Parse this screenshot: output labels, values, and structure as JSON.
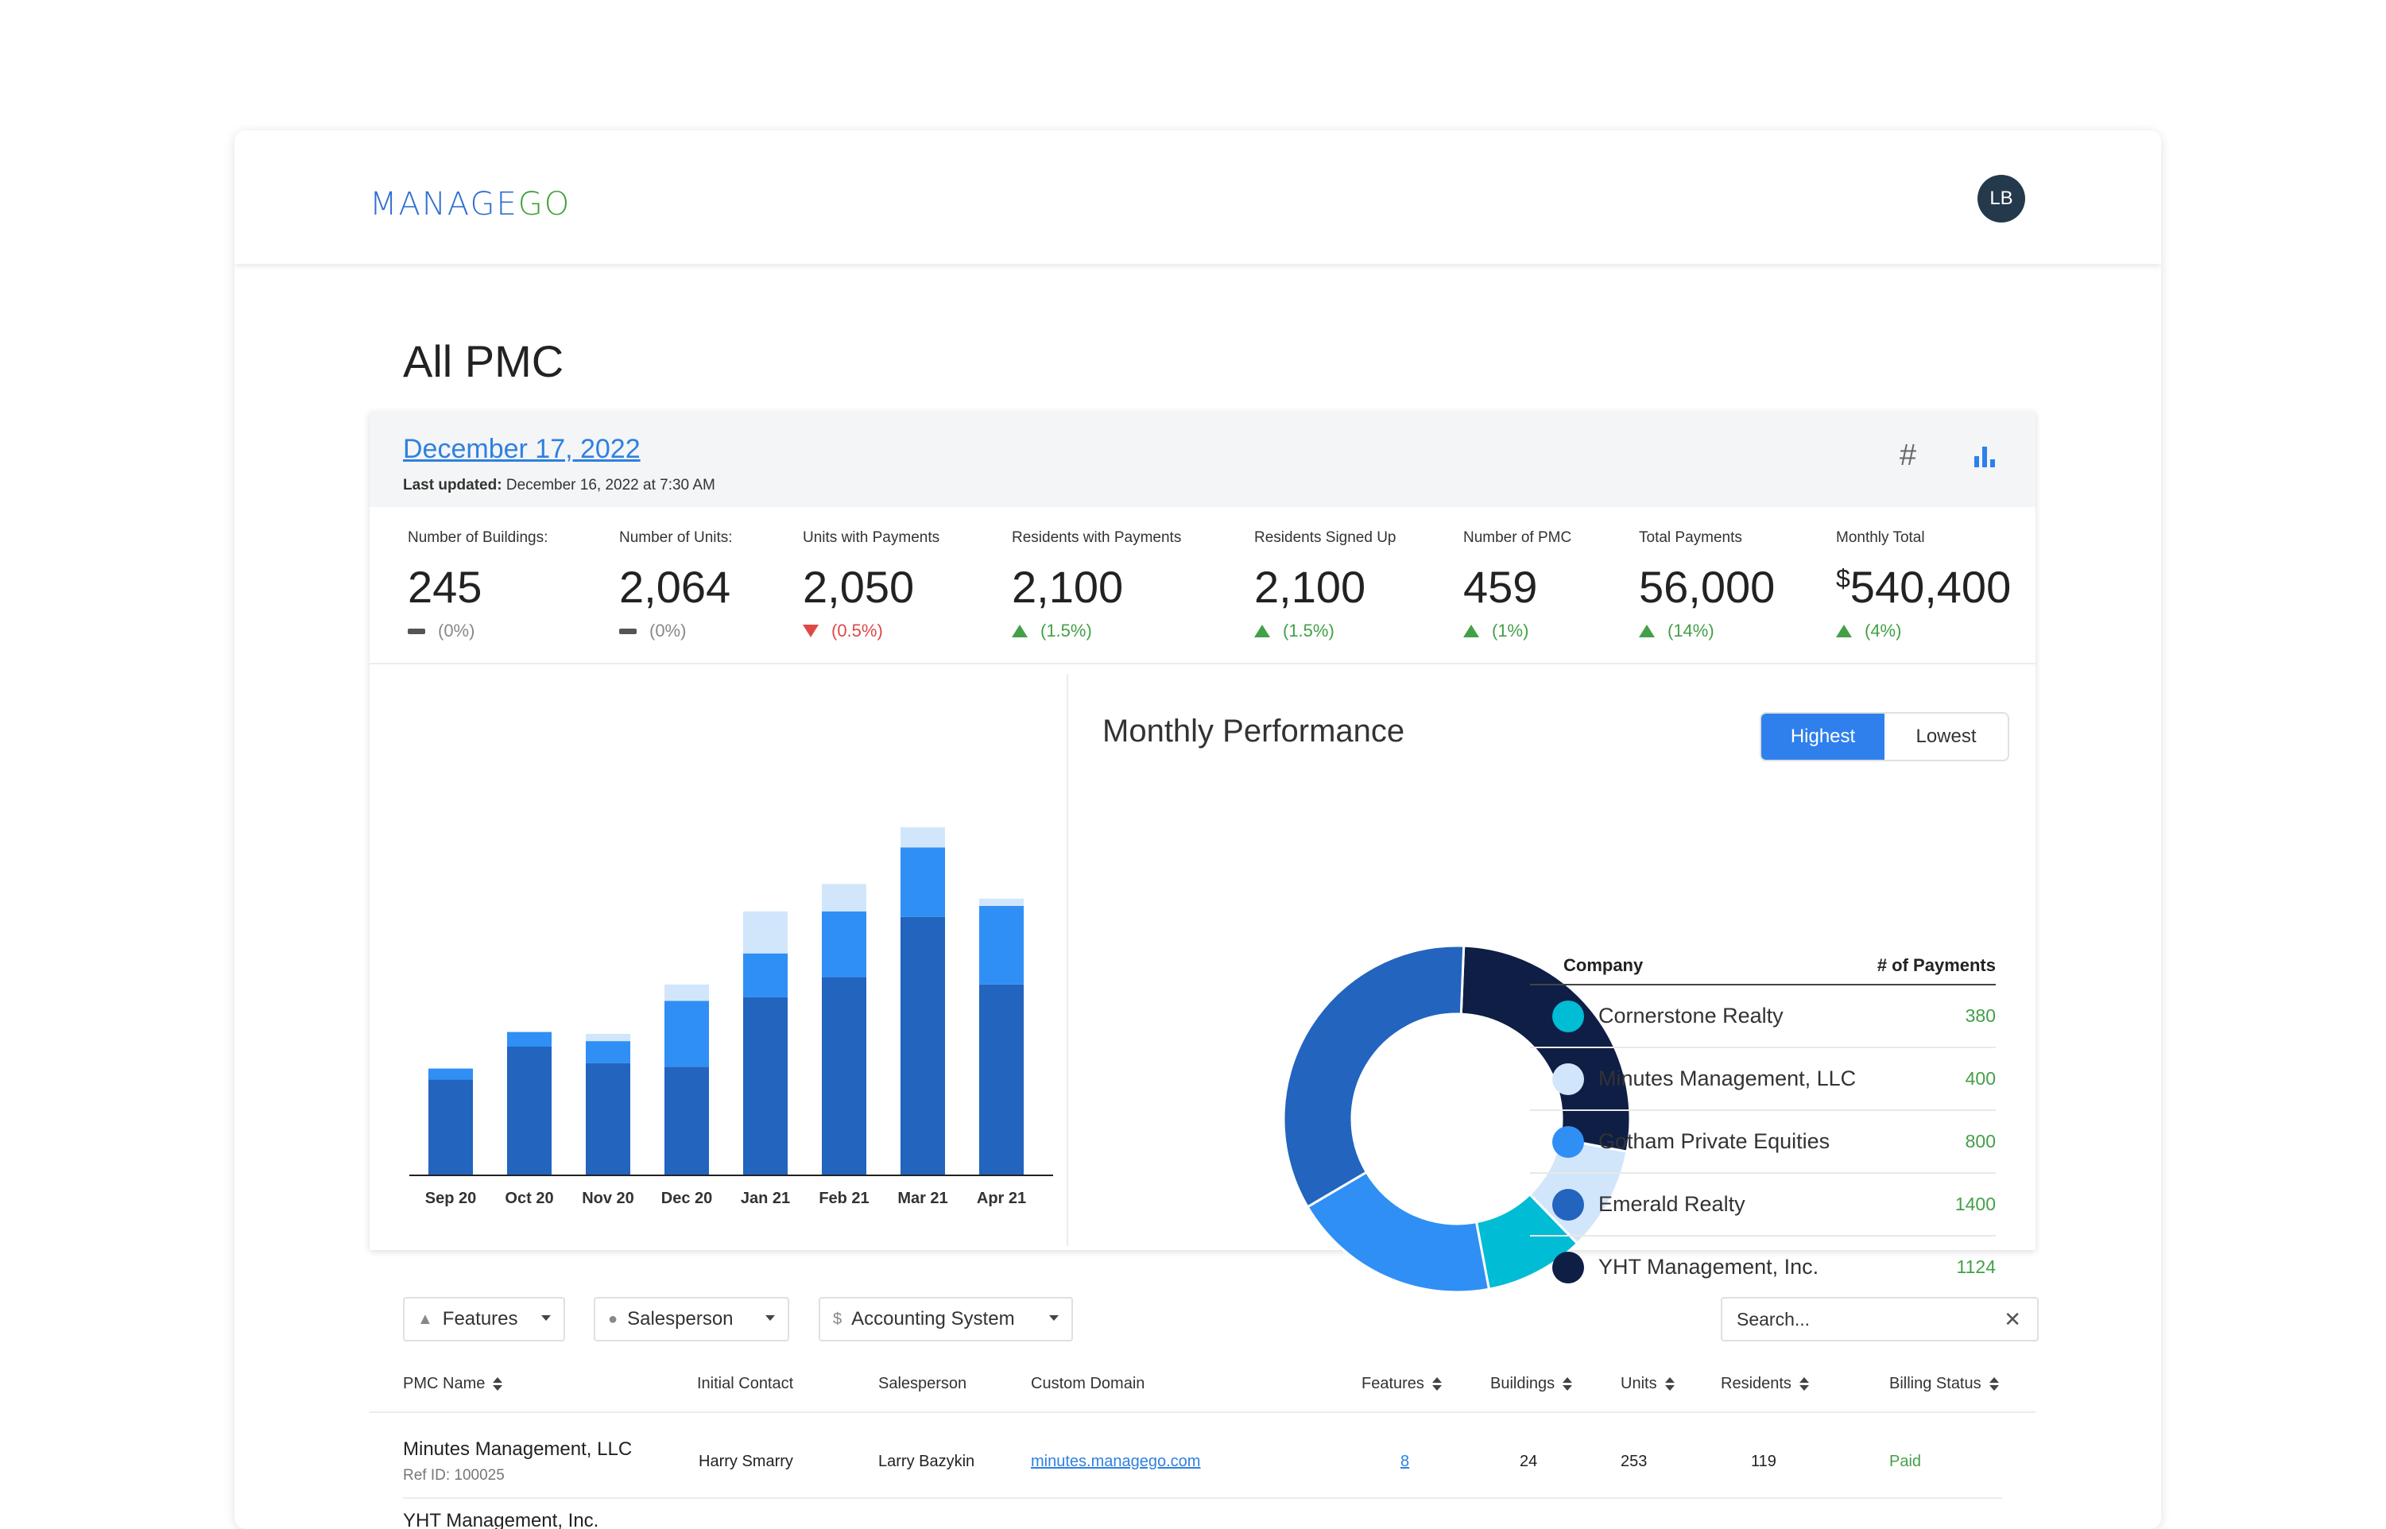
{
  "header": {
    "logo_manage": "MANAGE",
    "logo_go": "GO",
    "avatar_initials": "LB"
  },
  "page": {
    "title": "All PMC"
  },
  "summary": {
    "date": "December 17, 2022",
    "last_updated_label": "Last updated:",
    "last_updated_value": "December 16, 2022 at 7:30 AM",
    "view_icons": [
      "hash-icon",
      "bar-chart-icon"
    ],
    "stats": [
      {
        "label": "Number of Buildings:",
        "value": "245",
        "change": "(0%)",
        "trend": "neutral"
      },
      {
        "label": "Number of Units:",
        "value": "2,064",
        "change": "(0%)",
        "trend": "neutral"
      },
      {
        "label": "Units with Payments",
        "value": "2,050",
        "change": "(0.5%)",
        "trend": "down"
      },
      {
        "label": "Residents with Payments",
        "value": "2,100",
        "change": "(1.5%)",
        "trend": "up"
      },
      {
        "label": "Residents Signed Up",
        "value": "2,100",
        "change": "(1.5%)",
        "trend": "up"
      },
      {
        "label": "Number of PMC",
        "value": "459",
        "change": "(1%)",
        "trend": "up"
      },
      {
        "label": "Total Payments",
        "value": "56,000",
        "change": "(14%)",
        "trend": "up"
      },
      {
        "label": "Monthly Total",
        "currency": "$",
        "value": "540,400",
        "change": "(4%)",
        "trend": "up"
      }
    ]
  },
  "chart_data": [
    {
      "type": "bar",
      "stacked": true,
      "categories": [
        "Sep 20",
        "Oct 20",
        "Nov 20",
        "Dec 20",
        "Jan 21",
        "Feb 21",
        "Mar 21",
        "Apr 21"
      ],
      "series": [
        {
          "color": "#2264be",
          "values": [
            52,
            70,
            61,
            59,
            97,
            108,
            141,
            104
          ]
        },
        {
          "color": "#2f8ff5",
          "values": [
            6,
            8,
            12,
            36,
            24,
            36,
            38,
            43
          ]
        },
        {
          "color": "#d2e6fb",
          "values": [
            0,
            0,
            4,
            9,
            23,
            15,
            11,
            4
          ]
        }
      ],
      "ylim": [
        0,
        200
      ],
      "grid": false
    },
    {
      "type": "pie",
      "donut": true,
      "title": "Monthly Performance",
      "series": [
        {
          "name": "Cornerstone Realty",
          "value": 380,
          "color": "#00bcd4"
        },
        {
          "name": "Minutes Management, LLC",
          "value": 400,
          "color": "#d2e6fb"
        },
        {
          "name": "Gotham Private Equities",
          "value": 800,
          "color": "#2f8ff5"
        },
        {
          "name": "Emerald Realty",
          "value": 1400,
          "color": "#2264be"
        },
        {
          "name": "YHT Management, Inc.",
          "value": 1124,
          "color": "#0f1e45"
        }
      ]
    }
  ],
  "performance": {
    "title": "Monthly Performance",
    "toggle_highest": "Highest",
    "toggle_lowest": "Lowest",
    "col_company": "Company",
    "col_payments": "# of Payments",
    "rows": [
      {
        "company": "Cornerstone Realty",
        "payments": "380",
        "color": "#00bcd4"
      },
      {
        "company": "Minutes Management, LLC",
        "payments": "400",
        "color": "#d2e6fb"
      },
      {
        "company": "Gotham Private Equities",
        "payments": "800",
        "color": "#2f8ff5"
      },
      {
        "company": "Emerald Realty",
        "payments": "1400",
        "color": "#2264be"
      },
      {
        "company": "YHT Management, Inc.",
        "payments": "1124",
        "color": "#0f1e45"
      }
    ]
  },
  "filters": {
    "features": "Features",
    "salesperson": "Salesperson",
    "accounting": "Accounting System",
    "search_placeholder": "Search..."
  },
  "table": {
    "columns": {
      "pmc_name": "PMC Name",
      "initial_contact": "Initial Contact",
      "salesperson": "Salesperson",
      "custom_domain": "Custom Domain",
      "features": "Features",
      "buildings": "Buildings",
      "units": "Units",
      "residents": "Residents",
      "billing_status": "Billing Status"
    },
    "rows": [
      {
        "name": "Minutes Management, LLC",
        "ref": "Ref ID: 100025",
        "initial_contact": "Harry Smarry",
        "salesperson": "Larry Bazykin",
        "domain": "minutes.managego.com",
        "features": "8",
        "buildings": "24",
        "units": "253",
        "residents": "119",
        "billing": "Paid"
      },
      {
        "name": "YHT Management, Inc."
      }
    ]
  },
  "colors": {
    "accent": "#2f80ed",
    "positive": "#43a047",
    "negative": "#e04848"
  }
}
